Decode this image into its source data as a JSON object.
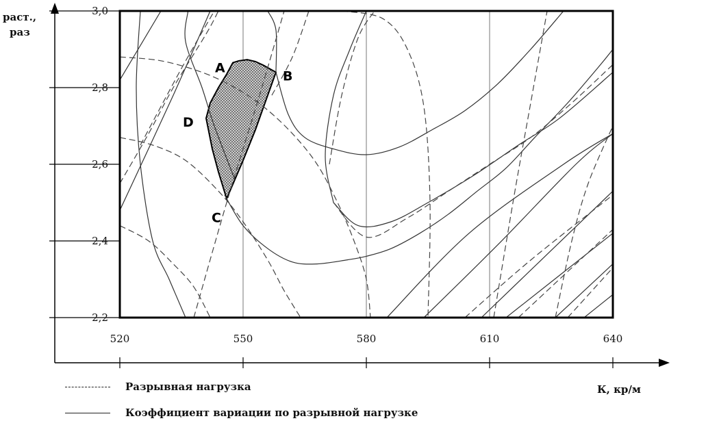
{
  "chart_data": {
    "type": "line",
    "title": "",
    "xlabel": "К, кр/м",
    "ylabel": "раст.,\nраз",
    "xlim": [
      520,
      640
    ],
    "ylim": [
      2.2,
      3.0
    ],
    "x_ticks": [
      "520",
      "550",
      "580",
      "610",
      "640"
    ],
    "y_ticks": [
      "2,2",
      "2,4",
      "2,6",
      "2,8",
      "3,0"
    ],
    "x_tick_values": [
      520,
      550,
      580,
      610,
      640
    ],
    "y_tick_values": [
      2.2,
      2.4,
      2.6,
      2.8,
      3.0
    ],
    "grid": "vertical",
    "legend": [
      {
        "label": "Разрывная нагрузка",
        "style": "dashed"
      },
      {
        "label": "Коэффициент вариации по разрывной нагрузке",
        "style": "solid"
      }
    ],
    "points": [
      {
        "label": "A",
        "x": 547.5,
        "y": 2.865
      },
      {
        "label": "B",
        "x": 558,
        "y": 2.84
      },
      {
        "label": "C",
        "x": 546,
        "y": 2.51
      },
      {
        "label": "D",
        "x": 541,
        "y": 2.72
      }
    ],
    "region": [
      [
        547.5,
        2.865
      ],
      [
        549,
        2.87
      ],
      [
        551,
        2.873
      ],
      [
        553,
        2.868
      ],
      [
        555,
        2.858
      ],
      [
        558,
        2.84
      ],
      [
        556,
        2.78
      ],
      [
        553,
        2.69
      ],
      [
        550,
        2.61
      ],
      [
        548,
        2.56
      ],
      [
        546,
        2.51
      ],
      [
        544,
        2.58
      ],
      [
        542.5,
        2.64
      ],
      [
        541,
        2.72
      ],
      [
        542,
        2.76
      ],
      [
        544,
        2.8
      ],
      [
        546,
        2.835
      ]
    ],
    "series": [
      {
        "style": "solid",
        "points": [
          [
            536.6,
            3.0
          ],
          [
            536,
            2.92
          ],
          [
            540,
            2.8
          ],
          [
            543,
            2.7
          ],
          [
            548,
            2.56
          ]
        ]
      },
      {
        "style": "solid",
        "points": [
          [
            525,
            3.0
          ],
          [
            524,
            2.8
          ],
          [
            525,
            2.6
          ],
          [
            528,
            2.4
          ],
          [
            532,
            2.3
          ],
          [
            536,
            2.2
          ]
        ]
      },
      {
        "style": "solid",
        "points": [
          [
            520,
            2.48
          ],
          [
            533,
            2.78
          ],
          [
            542,
            3.0
          ]
        ]
      },
      {
        "style": "solid",
        "points": [
          [
            520,
            2.82
          ],
          [
            530,
            3.0
          ]
        ]
      },
      {
        "style": "solid",
        "points": [
          [
            545.5,
            2.52
          ],
          [
            550,
            2.44
          ],
          [
            556,
            2.38
          ],
          [
            562,
            2.345
          ],
          [
            568,
            2.34
          ],
          [
            575,
            2.35
          ],
          [
            580,
            2.36
          ],
          [
            586,
            2.38
          ],
          [
            593,
            2.42
          ],
          [
            600,
            2.47
          ],
          [
            607,
            2.53
          ],
          [
            614,
            2.59
          ],
          [
            621,
            2.67
          ],
          [
            629,
            2.76
          ],
          [
            637,
            2.86
          ],
          [
            640,
            2.9
          ]
        ]
      },
      {
        "style": "solid",
        "points": [
          [
            558,
            2.84
          ],
          [
            561,
            2.73
          ],
          [
            565,
            2.67
          ],
          [
            572,
            2.64
          ],
          [
            580,
            2.625
          ],
          [
            588,
            2.645
          ],
          [
            596,
            2.69
          ],
          [
            604,
            2.74
          ],
          [
            612,
            2.81
          ],
          [
            620,
            2.9
          ],
          [
            628,
            3.0
          ]
        ]
      },
      {
        "style": "solid",
        "points": [
          [
            556,
            3.0
          ],
          [
            558,
            2.95
          ],
          [
            558,
            2.84
          ]
        ]
      },
      {
        "style": "solid",
        "points": [
          [
            585,
            2.2
          ],
          [
            605,
            2.42
          ],
          [
            628,
            2.6
          ],
          [
            640,
            2.68
          ]
        ]
      },
      {
        "style": "solid",
        "points": [
          [
            594,
            2.2
          ],
          [
            612,
            2.39
          ],
          [
            631,
            2.6
          ],
          [
            640,
            2.68
          ]
        ]
      },
      {
        "style": "solid",
        "points": [
          [
            608,
            2.2
          ],
          [
            640,
            2.53
          ]
        ]
      },
      {
        "style": "solid",
        "points": [
          [
            614,
            2.2
          ],
          [
            640,
            2.42
          ]
        ]
      },
      {
        "style": "solid",
        "points": [
          [
            626,
            2.2
          ],
          [
            640,
            2.34
          ]
        ]
      },
      {
        "style": "solid",
        "points": [
          [
            633,
            2.2
          ],
          [
            640,
            2.26
          ]
        ]
      },
      {
        "style": "solid",
        "points": [
          [
            572,
            2.5
          ],
          [
            578,
            2.44
          ],
          [
            586,
            2.45
          ],
          [
            595,
            2.5
          ],
          [
            606,
            2.57
          ],
          [
            617,
            2.65
          ],
          [
            627,
            2.72
          ],
          [
            640,
            2.84
          ]
        ]
      },
      {
        "style": "solid",
        "points": [
          [
            572,
            2.5
          ],
          [
            570,
            2.62
          ],
          [
            572,
            2.78
          ],
          [
            576,
            2.9
          ],
          [
            580,
            3.0
          ]
        ]
      },
      {
        "style": "dashed",
        "points": [
          [
            520,
            2.88
          ],
          [
            530,
            2.87
          ],
          [
            540,
            2.84
          ],
          [
            548,
            2.8
          ],
          [
            555,
            2.75
          ],
          [
            562,
            2.68
          ],
          [
            568,
            2.6
          ],
          [
            573,
            2.5
          ],
          [
            577,
            2.4
          ],
          [
            580,
            2.3
          ],
          [
            581,
            2.2
          ]
        ]
      },
      {
        "style": "dashed",
        "points": [
          [
            520,
            2.67
          ],
          [
            528,
            2.65
          ],
          [
            536,
            2.61
          ],
          [
            544,
            2.53
          ],
          [
            550,
            2.45
          ],
          [
            556,
            2.35
          ],
          [
            560,
            2.27
          ],
          [
            564,
            2.2
          ]
        ]
      },
      {
        "style": "dashed",
        "points": [
          [
            520,
            2.44
          ],
          [
            527,
            2.4
          ],
          [
            533,
            2.34
          ],
          [
            538,
            2.28
          ],
          [
            542,
            2.2
          ]
        ]
      },
      {
        "style": "dashed",
        "points": [
          [
            520,
            2.55
          ],
          [
            527,
            2.68
          ],
          [
            533,
            2.8
          ],
          [
            541,
            2.94
          ],
          [
            544,
            3.0
          ]
        ]
      },
      {
        "style": "dashed",
        "points": [
          [
            525,
            2.65
          ],
          [
            535,
            2.85
          ],
          [
            543,
            3.0
          ]
        ]
      },
      {
        "style": "dashed",
        "points": [
          [
            538,
            2.2
          ],
          [
            546,
            2.5
          ],
          [
            554,
            2.78
          ],
          [
            560,
            3.0
          ]
        ]
      },
      {
        "style": "dashed",
        "points": [
          [
            557,
            2.78
          ],
          [
            562,
            2.88
          ],
          [
            566,
            3.0
          ]
        ]
      },
      {
        "style": "dashed",
        "points": [
          [
            574,
            3.0
          ],
          [
            584,
            2.98
          ],
          [
            590,
            2.9
          ],
          [
            594,
            2.75
          ],
          [
            595.5,
            2.5
          ],
          [
            595,
            2.2
          ]
        ]
      },
      {
        "style": "dashed",
        "points": [
          [
            571,
            2.6
          ],
          [
            574,
            2.78
          ],
          [
            578,
            2.93
          ],
          [
            582,
            3.0
          ]
        ]
      },
      {
        "style": "dashed",
        "points": [
          [
            572,
            2.5
          ],
          [
            580,
            2.41
          ],
          [
            590,
            2.46
          ],
          [
            600,
            2.53
          ],
          [
            610,
            2.6
          ],
          [
            620,
            2.67
          ],
          [
            630,
            2.76
          ],
          [
            640,
            2.86
          ]
        ]
      },
      {
        "style": "dashed",
        "points": [
          [
            611,
            2.2
          ],
          [
            616,
            2.52
          ],
          [
            620,
            2.76
          ],
          [
            624,
            3.0
          ]
        ]
      },
      {
        "style": "dashed",
        "points": [
          [
            626,
            2.2
          ],
          [
            630,
            2.4
          ],
          [
            634,
            2.55
          ],
          [
            640,
            2.7
          ]
        ]
      },
      {
        "style": "dashed",
        "points": [
          [
            604,
            2.2
          ],
          [
            620,
            2.35
          ],
          [
            640,
            2.52
          ]
        ]
      },
      {
        "style": "dashed",
        "points": [
          [
            617,
            2.2
          ],
          [
            640,
            2.43
          ]
        ]
      },
      {
        "style": "dashed",
        "points": [
          [
            629,
            2.2
          ],
          [
            640,
            2.33
          ]
        ]
      }
    ]
  }
}
